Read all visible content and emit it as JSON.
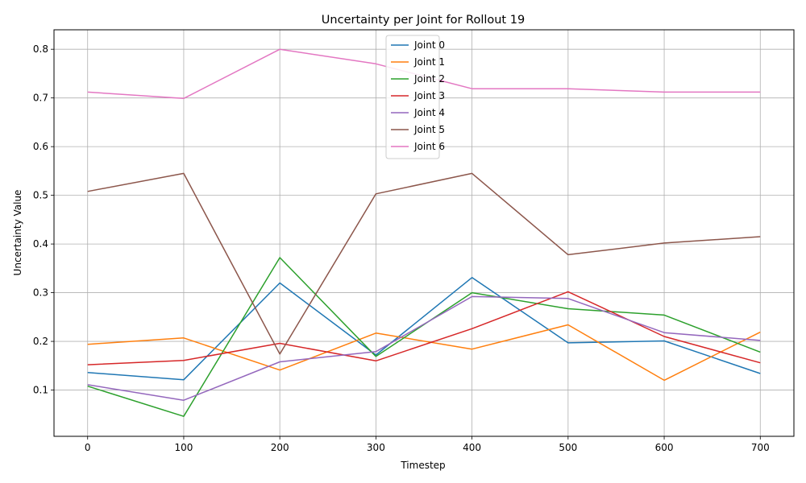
{
  "chart_data": {
    "type": "line",
    "title": "Uncertainty per Joint for Rollout 19",
    "xlabel": "Timestep",
    "ylabel": "Uncertainty Value",
    "xlim": [
      -35,
      735
    ],
    "ylim": [
      0.005,
      0.84
    ],
    "x": [
      0,
      100,
      200,
      300,
      400,
      500,
      600,
      700
    ],
    "xticks": [
      "0",
      "100",
      "200",
      "300",
      "400",
      "500",
      "600",
      "700"
    ],
    "yticks": [
      "0.1",
      "0.2",
      "0.3",
      "0.4",
      "0.5",
      "0.6",
      "0.7",
      "0.8"
    ],
    "grid": true,
    "legend_position": "upper center",
    "series": [
      {
        "name": "Joint 0",
        "color": "#1f77b4",
        "values": [
          0.136,
          0.121,
          0.32,
          0.172,
          0.331,
          0.197,
          0.201,
          0.134
        ]
      },
      {
        "name": "Joint 1",
        "color": "#ff7f0e",
        "values": [
          0.194,
          0.207,
          0.141,
          0.217,
          0.184,
          0.234,
          0.12,
          0.219
        ]
      },
      {
        "name": "Joint 2",
        "color": "#2ca02c",
        "values": [
          0.108,
          0.046,
          0.372,
          0.169,
          0.3,
          0.267,
          0.254,
          0.178
        ]
      },
      {
        "name": "Joint 3",
        "color": "#d62728",
        "values": [
          0.152,
          0.161,
          0.196,
          0.16,
          0.226,
          0.302,
          0.21,
          0.156
        ]
      },
      {
        "name": "Joint 4",
        "color": "#9467bd",
        "values": [
          0.111,
          0.079,
          0.158,
          0.179,
          0.292,
          0.288,
          0.218,
          0.202
        ]
      },
      {
        "name": "Joint 5",
        "color": "#8c564b",
        "values": [
          0.508,
          0.545,
          0.174,
          0.503,
          0.545,
          0.378,
          0.402,
          0.415
        ]
      },
      {
        "name": "Joint 6",
        "color": "#e377c2",
        "values": [
          0.712,
          0.699,
          0.8,
          0.77,
          0.719,
          0.719,
          0.712,
          0.712
        ]
      }
    ]
  }
}
